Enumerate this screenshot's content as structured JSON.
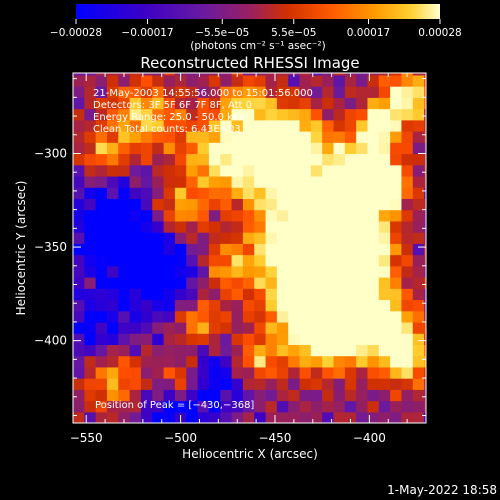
{
  "chart_data": {
    "type": "heatmap",
    "title": "Reconstructed RHESSI Image",
    "xlabel": "Heliocentric X (arcsec)",
    "ylabel": "Heliocentric Y (arcsec)",
    "xlim": [
      -557,
      -370
    ],
    "ylim": [
      -444,
      -257
    ],
    "xticks": [
      -550,
      -500,
      -450,
      -400
    ],
    "xtick_labels": [
      "−550",
      "−500",
      "−450",
      "−400"
    ],
    "yticks": [
      -300,
      -350,
      -400
    ],
    "ytick_labels": [
      "−300",
      "−350",
      "−400"
    ],
    "colorbar": {
      "range": [
        -0.00028,
        0.00028
      ],
      "ticks": [
        -0.00028,
        -0.00017,
        -5.5e-05,
        5.5e-05,
        0.00017,
        0.00028
      ],
      "tick_labels": [
        "−0.00028",
        "−0.00017",
        "−5.5e−05",
        "5.5e−05",
        "0.00017",
        "0.00028"
      ],
      "unit_label": "(photons cm⁻² s⁻¹ asec⁻²)",
      "colors": [
        "#0000ff",
        "#3a00c8",
        "#6a1aa0",
        "#a02050",
        "#d03000",
        "#ff5000",
        "#ff9a00",
        "#ffd030",
        "#ffffc8"
      ]
    },
    "peak": {
      "x": -430,
      "y": -368
    },
    "annotations": [
      "21-May-2003 14:55:56.000 to 15:01:56.000",
      "Detectors: 3F 5F 6F 7F 8F, Att 0",
      "Energy Range: 25.0 - 50.0 keV",
      "Clean    Total counts: 6.43E+03"
    ],
    "peak_label": "Position of Peak = [−430,−368]",
    "footer_date": "1-May-2022 18:58"
  }
}
